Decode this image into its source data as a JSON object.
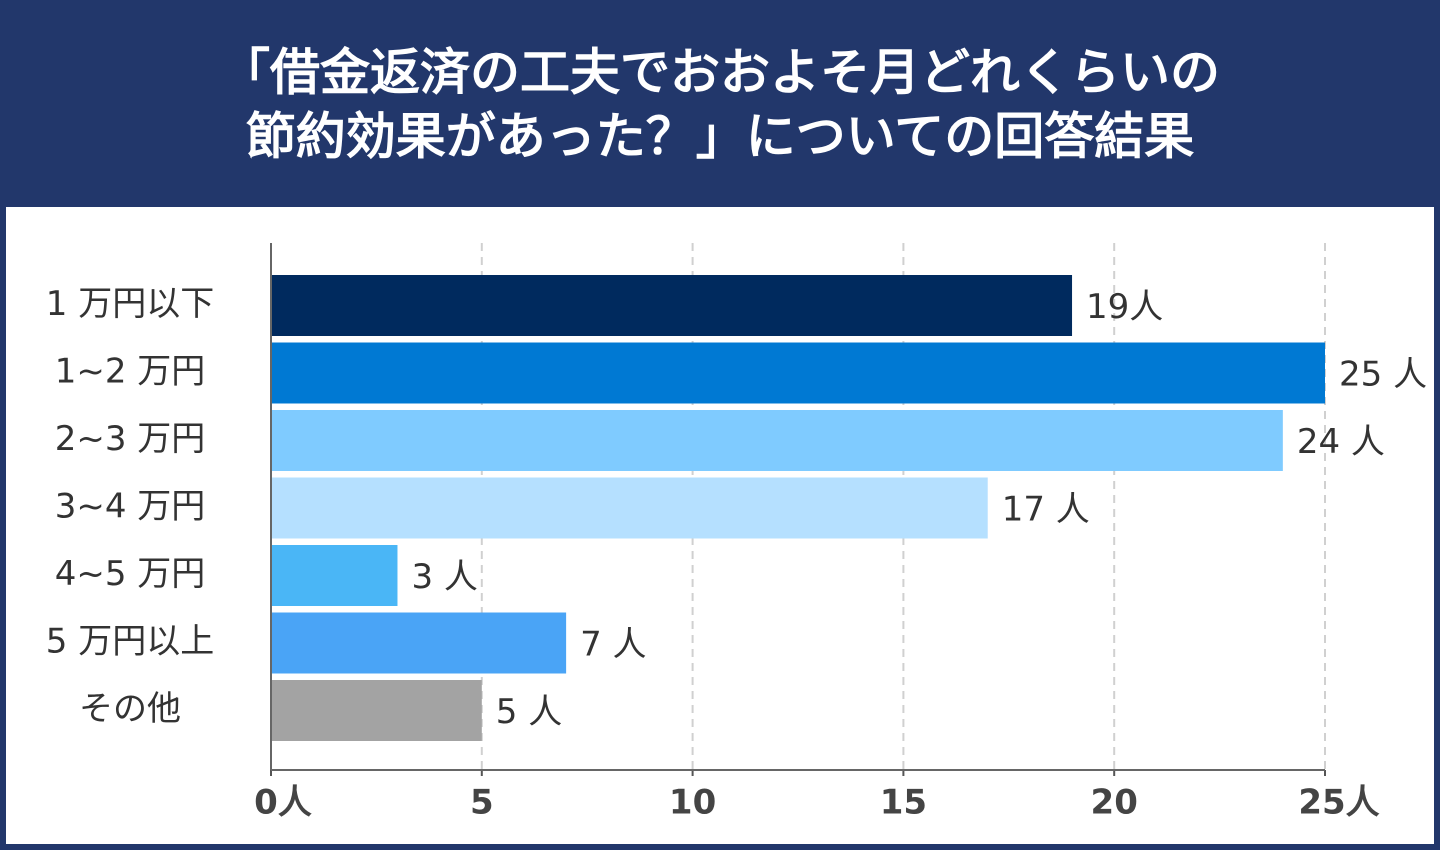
{
  "chart_data": {
    "type": "bar",
    "orientation": "horizontal",
    "title": [
      "「借金返済の工夫でおおよそ月どれくらいの",
      "節約効果があった？」についての回答結果"
    ],
    "categories": [
      "1 万円以下",
      "1~2 万円",
      "2~3 万円",
      "3~4 万円",
      "4~5 万円",
      "5 万円以上",
      "その他"
    ],
    "values": [
      19,
      25,
      24,
      17,
      3,
      7,
      5
    ],
    "value_labels": [
      "19人",
      "25 人",
      "24 人",
      "17 人",
      "3 人",
      "7 人",
      "5 人"
    ],
    "colors": [
      "#002a5e",
      "#0079d3",
      "#7fcbff",
      "#b5e0ff",
      "#4ab6f6",
      "#4aa4f6",
      "#a3a3a3"
    ],
    "xlim": [
      0,
      25
    ],
    "xticks": [
      {
        "value": 0,
        "label": "0人"
      },
      5,
      10,
      15,
      20,
      {
        "value": 25,
        "label": "25人"
      }
    ],
    "grid": true
  }
}
